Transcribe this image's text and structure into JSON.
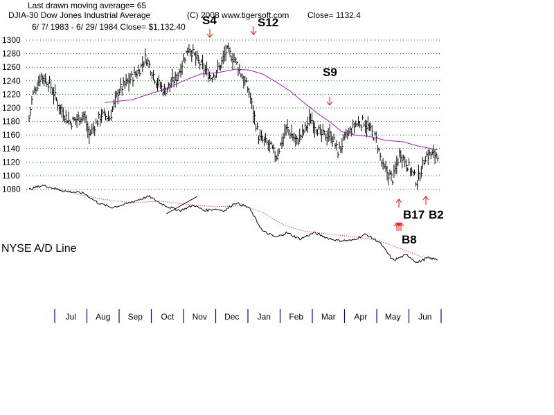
{
  "header": {
    "line1": "Last drawn moving average= 65",
    "line2_left": "DJIA-30  Dow Jones Industrial Average",
    "line2_mid": "(C) 2008 www.tigersoft.com",
    "line2_right": "Close=  1132.4",
    "line3": "6/ 7/ 1983 -  6/ 29/ 1984   Close= $1,132.40"
  },
  "colors": {
    "price_bar": "#000000",
    "moving_average": "#9c1fb0",
    "grid": "#008000",
    "ad_line": "#000000",
    "ad_average": "#ff0000",
    "signal_arrow": "#ff0000",
    "month_divider": "#0000cc"
  },
  "chart_data": [
    {
      "type": "bar",
      "title": "DJIA-30  Dow Jones Industrial Average",
      "subtitle": "6/ 7/ 1983 -  6/ 29/ 1984   Close= $1,132.40",
      "ylim": [
        1060,
        1300
      ],
      "yticks": [
        1080,
        1100,
        1120,
        1140,
        1160,
        1180,
        1200,
        1220,
        1240,
        1260,
        1280,
        1300
      ],
      "grid": true,
      "months": [
        "Jul",
        "Aug",
        "Sep",
        "Oct",
        "Nov",
        "Dec",
        "Jan",
        "Feb",
        "Mar",
        "Apr",
        "May",
        "Jun"
      ],
      "close_anchors": [
        {
          "pos": 0,
          "y": 1185
        },
        {
          "pos": 0.1,
          "y": 1218
        },
        {
          "pos": 0.35,
          "y": 1248
        },
        {
          "pos": 0.6,
          "y": 1235
        },
        {
          "pos": 0.9,
          "y": 1200
        },
        {
          "pos": 1.2,
          "y": 1178
        },
        {
          "pos": 1.6,
          "y": 1190
        },
        {
          "pos": 1.75,
          "y": 1160
        },
        {
          "pos": 2.1,
          "y": 1190
        },
        {
          "pos": 2.35,
          "y": 1185
        },
        {
          "pos": 2.6,
          "y": 1225
        },
        {
          "pos": 2.9,
          "y": 1240
        },
        {
          "pos": 3.2,
          "y": 1255
        },
        {
          "pos": 3.4,
          "y": 1275
        },
        {
          "pos": 3.7,
          "y": 1240
        },
        {
          "pos": 3.95,
          "y": 1225
        },
        {
          "pos": 4.3,
          "y": 1245
        },
        {
          "pos": 4.65,
          "y": 1290
        },
        {
          "pos": 4.9,
          "y": 1270
        },
        {
          "pos": 5.3,
          "y": 1245
        },
        {
          "pos": 5.55,
          "y": 1260
        },
        {
          "pos": 5.75,
          "y": 1285
        },
        {
          "pos": 6.0,
          "y": 1270
        },
        {
          "pos": 6.4,
          "y": 1225
        },
        {
          "pos": 6.7,
          "y": 1155
        },
        {
          "pos": 7.0,
          "y": 1145
        },
        {
          "pos": 7.2,
          "y": 1128
        },
        {
          "pos": 7.5,
          "y": 1170
        },
        {
          "pos": 7.8,
          "y": 1150
        },
        {
          "pos": 8.0,
          "y": 1165
        },
        {
          "pos": 8.2,
          "y": 1185
        },
        {
          "pos": 8.5,
          "y": 1160
        },
        {
          "pos": 8.8,
          "y": 1160
        },
        {
          "pos": 9.0,
          "y": 1135
        },
        {
          "pos": 9.2,
          "y": 1155
        },
        {
          "pos": 9.5,
          "y": 1175
        },
        {
          "pos": 9.75,
          "y": 1180
        },
        {
          "pos": 10.1,
          "y": 1155
        },
        {
          "pos": 10.3,
          "y": 1112
        },
        {
          "pos": 10.6,
          "y": 1095
        },
        {
          "pos": 10.8,
          "y": 1135
        },
        {
          "pos": 11.1,
          "y": 1110
        },
        {
          "pos": 11.3,
          "y": 1090
        },
        {
          "pos": 11.55,
          "y": 1130
        },
        {
          "pos": 11.9,
          "y": 1132
        }
      ],
      "moving_average": {
        "period": 65,
        "points": [
          {
            "pos": 2.2,
            "y": 1208
          },
          {
            "pos": 3.0,
            "y": 1212
          },
          {
            "pos": 3.6,
            "y": 1222
          },
          {
            "pos": 4.0,
            "y": 1228
          },
          {
            "pos": 4.5,
            "y": 1240
          },
          {
            "pos": 5.0,
            "y": 1250
          },
          {
            "pos": 5.5,
            "y": 1252
          },
          {
            "pos": 6.0,
            "y": 1257
          },
          {
            "pos": 6.4,
            "y": 1256
          },
          {
            "pos": 6.8,
            "y": 1250
          },
          {
            "pos": 7.2,
            "y": 1238
          },
          {
            "pos": 7.6,
            "y": 1225
          },
          {
            "pos": 8.0,
            "y": 1208
          },
          {
            "pos": 8.4,
            "y": 1192
          },
          {
            "pos": 8.8,
            "y": 1178
          },
          {
            "pos": 9.1,
            "y": 1165
          },
          {
            "pos": 9.5,
            "y": 1160
          },
          {
            "pos": 9.9,
            "y": 1158
          },
          {
            "pos": 10.4,
            "y": 1152
          },
          {
            "pos": 10.9,
            "y": 1150
          },
          {
            "pos": 11.3,
            "y": 1144
          },
          {
            "pos": 11.7,
            "y": 1140
          },
          {
            "pos": 11.9,
            "y": 1138
          }
        ]
      },
      "signals": [
        {
          "label": "S4",
          "pos": 4.6,
          "kind": "sell"
        },
        {
          "label": "S12",
          "pos": 5.75,
          "kind": "sell"
        },
        {
          "label": "S9",
          "pos": 8.2,
          "kind": "sell"
        },
        {
          "label": "B17",
          "pos": 10.6,
          "kind": "buy"
        },
        {
          "label": "B8",
          "pos": 10.65,
          "kind": "buy"
        },
        {
          "label": "B2",
          "pos": 11.3,
          "kind": "buy"
        }
      ]
    },
    {
      "type": "line",
      "title": "NYSE A/D Line",
      "ad_anchors": [
        {
          "pos": 0,
          "v": 0.95
        },
        {
          "pos": 0.4,
          "v": 1.0
        },
        {
          "pos": 1.0,
          "v": 0.93
        },
        {
          "pos": 1.6,
          "v": 0.9
        },
        {
          "pos": 2.0,
          "v": 0.78
        },
        {
          "pos": 2.4,
          "v": 0.72
        },
        {
          "pos": 2.8,
          "v": 0.76
        },
        {
          "pos": 3.2,
          "v": 0.82
        },
        {
          "pos": 3.5,
          "v": 0.86
        },
        {
          "pos": 3.8,
          "v": 0.78
        },
        {
          "pos": 4.1,
          "v": 0.72
        },
        {
          "pos": 4.4,
          "v": 0.68
        },
        {
          "pos": 4.8,
          "v": 0.75
        },
        {
          "pos": 5.1,
          "v": 0.68
        },
        {
          "pos": 5.4,
          "v": 0.7
        },
        {
          "pos": 5.7,
          "v": 0.68
        },
        {
          "pos": 6.0,
          "v": 0.78
        },
        {
          "pos": 6.4,
          "v": 0.72
        },
        {
          "pos": 6.8,
          "v": 0.42
        },
        {
          "pos": 7.2,
          "v": 0.34
        },
        {
          "pos": 7.5,
          "v": 0.4
        },
        {
          "pos": 7.9,
          "v": 0.32
        },
        {
          "pos": 8.3,
          "v": 0.4
        },
        {
          "pos": 8.7,
          "v": 0.33
        },
        {
          "pos": 9.0,
          "v": 0.3
        },
        {
          "pos": 9.4,
          "v": 0.3
        },
        {
          "pos": 9.8,
          "v": 0.38
        },
        {
          "pos": 10.2,
          "v": 0.28
        },
        {
          "pos": 10.6,
          "v": 0.05
        },
        {
          "pos": 11.0,
          "v": 0.12
        },
        {
          "pos": 11.3,
          "v": 0.02
        },
        {
          "pos": 11.6,
          "v": 0.08
        },
        {
          "pos": 11.9,
          "v": 0.06
        }
      ],
      "ad_average_anchors": [
        {
          "pos": 0.8,
          "v": 0.96
        },
        {
          "pos": 1.5,
          "v": 0.88
        },
        {
          "pos": 2.2,
          "v": 0.82
        },
        {
          "pos": 3.0,
          "v": 0.78
        },
        {
          "pos": 3.8,
          "v": 0.8
        },
        {
          "pos": 4.6,
          "v": 0.76
        },
        {
          "pos": 5.4,
          "v": 0.73
        },
        {
          "pos": 6.2,
          "v": 0.74
        },
        {
          "pos": 6.8,
          "v": 0.66
        },
        {
          "pos": 7.4,
          "v": 0.5
        },
        {
          "pos": 8.0,
          "v": 0.42
        },
        {
          "pos": 8.8,
          "v": 0.38
        },
        {
          "pos": 9.6,
          "v": 0.34
        },
        {
          "pos": 10.2,
          "v": 0.3
        },
        {
          "pos": 10.8,
          "v": 0.2
        },
        {
          "pos": 11.4,
          "v": 0.1
        },
        {
          "pos": 11.9,
          "v": 0.05
        }
      ]
    }
  ]
}
